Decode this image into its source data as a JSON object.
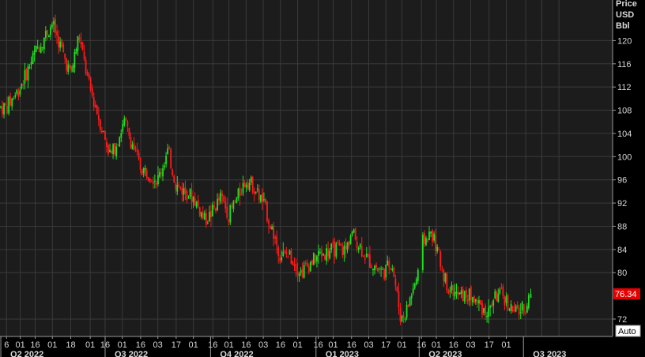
{
  "colors": {
    "background": "#000000",
    "plot_background": "#1c1c1c",
    "grid": "#3a3a3a",
    "up_candle": "#1fe01f",
    "down_candle": "#ff1a1a",
    "last_price_badge": "#e60000",
    "axis_text": "#d8d8d8",
    "auto_button": "#ffffff"
  },
  "axis_unit": [
    "Price",
    "USD",
    "Bbl"
  ],
  "auto_label": "Auto",
  "chart_data": {
    "type": "candlestick",
    "y_ticks": [
      120,
      116,
      112,
      108,
      104,
      100,
      96,
      92,
      88,
      84,
      80,
      72
    ],
    "ylim": [
      69,
      127
    ],
    "last_price": "76.34",
    "grid": true,
    "day_ticks": [
      "6",
      "01",
      "16",
      "01",
      "18",
      "01",
      "16",
      "01",
      "16",
      "03",
      "17",
      "01",
      "16",
      "01",
      "16",
      "03",
      "16",
      "01",
      "16",
      "01",
      "16",
      "03",
      "17",
      "01",
      "16",
      "01",
      "16",
      "03",
      "17",
      "01"
    ],
    "quarters": [
      "Q2 2022",
      "Q3 2022",
      "Q4 2022",
      "Q1 2023",
      "Q2 2023",
      "Q3 2023"
    ],
    "series_anchors": {
      "x": [
        "2022-04-06",
        "2022-04-18",
        "2022-05-01",
        "2022-05-16",
        "2022-06-01",
        "2022-06-08",
        "2022-06-16",
        "2022-07-01",
        "2022-07-06",
        "2022-07-18",
        "2022-08-01",
        "2022-08-16",
        "2022-08-25",
        "2022-09-01",
        "2022-09-16",
        "2022-09-26",
        "2022-10-01",
        "2022-10-10",
        "2022-10-17",
        "2022-11-01",
        "2022-11-07",
        "2022-11-16",
        "2022-12-01",
        "2022-12-09",
        "2022-12-19",
        "2023-01-03",
        "2023-01-16",
        "2023-01-27",
        "2023-02-01",
        "2023-02-16",
        "2023-03-01",
        "2023-03-08",
        "2023-03-16",
        "2023-03-20",
        "2023-03-28",
        "2023-04-01",
        "2023-04-03",
        "2023-04-12",
        "2023-04-25",
        "2023-05-04",
        "2023-05-16",
        "2023-05-31",
        "2023-06-06",
        "2023-06-13",
        "2023-06-23",
        "2023-07-03",
        "2023-07-06"
      ],
      "y": [
        108.5,
        112,
        118,
        123,
        114,
        121,
        113,
        103,
        100,
        106,
        98,
        96,
        101,
        95,
        93,
        89,
        90,
        93,
        90,
        96,
        95,
        92,
        83,
        83,
        80,
        83,
        84,
        84,
        87,
        82,
        80,
        82,
        72,
        73,
        78,
        80,
        85,
        87,
        78,
        76,
        76,
        73,
        76,
        76,
        73,
        74,
        76.34
      ]
    }
  }
}
